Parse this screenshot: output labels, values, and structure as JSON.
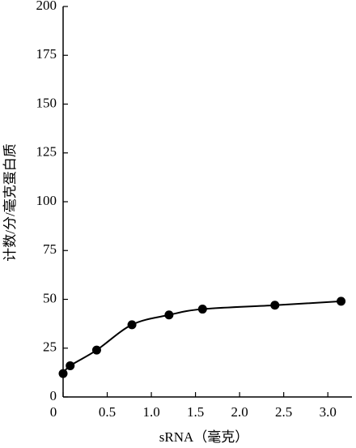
{
  "chart_data": {
    "type": "line",
    "x_label": "sRNA（毫克）",
    "y_label": "计数/分/毫克蛋白质",
    "x": [
      0,
      0.08,
      0.38,
      0.78,
      1.2,
      1.58,
      2.4,
      3.15
    ],
    "series": [
      {
        "color": "#000000",
        "values": [
          12,
          16,
          24,
          37,
          42,
          45,
          47,
          49
        ]
      }
    ],
    "xlim": [
      0,
      3.2
    ],
    "xticks": [
      0,
      0.5,
      {
        "value": 1,
        "label": "1.0"
      },
      1.5,
      {
        "value": 2,
        "label": "2.0"
      },
      2.5,
      {
        "value": 3,
        "label": "3.0"
      }
    ],
    "ylim": [
      0,
      200
    ],
    "yticks": [
      0,
      25,
      50,
      75,
      100,
      125,
      150,
      175,
      200
    ]
  }
}
